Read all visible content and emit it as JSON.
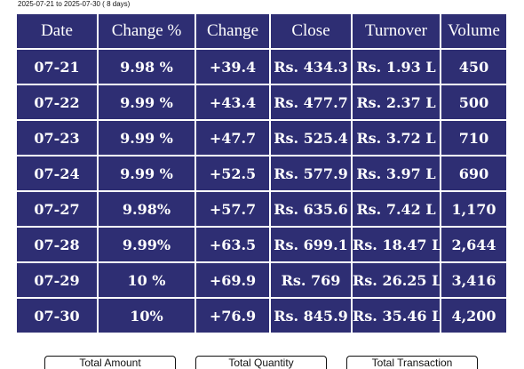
{
  "date_range": "2025-07-21 to 2025-07-30 ( 8 days)",
  "table": {
    "headers": [
      "Date",
      "Change %",
      "Change",
      "Close",
      "Turnover",
      "Volume"
    ],
    "rows": [
      [
        "07-21",
        "9.98 %",
        "+39.4",
        "Rs. 434.3",
        "Rs. 1.93 L",
        "450"
      ],
      [
        "07-22",
        "9.99 %",
        "+43.4",
        "Rs. 477.7",
        "Rs. 2.37 L",
        "500"
      ],
      [
        "07-23",
        "9.99 %",
        "+47.7",
        "Rs. 525.4",
        "Rs. 3.72 L",
        "710"
      ],
      [
        "07-24",
        "9.99 %",
        "+52.5",
        "Rs. 577.9",
        "Rs. 3.97 L",
        "690"
      ],
      [
        "07-27",
        "9.98%",
        "+57.7",
        "Rs. 635.6",
        "Rs. 7.42 L",
        "1,170"
      ],
      [
        "07-28",
        "9.99%",
        "+63.5",
        "Rs. 699.1",
        "Rs. 18.47 L",
        "2,644"
      ],
      [
        "07-29",
        "10 %",
        "+69.9",
        "Rs. 769",
        "Rs. 26.25 L",
        "3,416"
      ],
      [
        "07-30",
        "10%",
        "+76.9",
        "Rs. 845.9",
        "Rs. 35.46 L",
        "4,200"
      ]
    ]
  },
  "footer_buttons": [
    "Total Amount",
    "Total Quantity",
    "Total Transaction"
  ],
  "colors": {
    "table_bg": "#2e2e73",
    "grid": "#ffffff"
  }
}
